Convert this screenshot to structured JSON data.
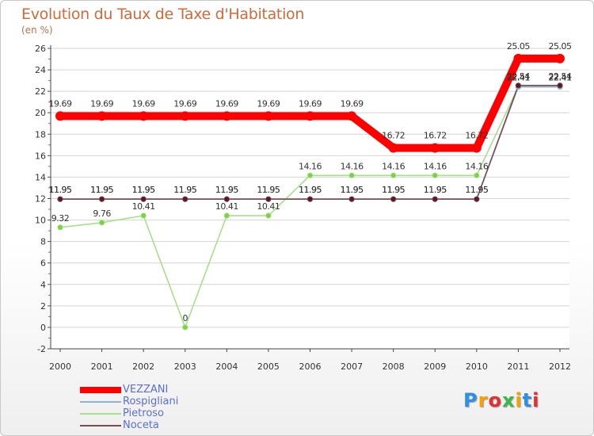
{
  "header": {
    "title": "Evolution du Taux de Taxe d'Habitation",
    "subtitle": "(en %)"
  },
  "logo": {
    "text": "Proxiti",
    "colors": [
      "#2f8fe6",
      "#f4a300",
      "#e03030",
      "#3cb54a",
      "#f4a300",
      "#2f8fe6",
      "#e03030"
    ]
  },
  "chart_data": {
    "type": "line",
    "title": "Evolution du Taux de Taxe d'Habitation",
    "ylabel": "(en %)",
    "xlabel": "",
    "x": [
      "2000",
      "2001",
      "2002",
      "2003",
      "2004",
      "2005",
      "2006",
      "2007",
      "2008",
      "2009",
      "2010",
      "2011",
      "2012"
    ],
    "ylim": [
      -2,
      26
    ],
    "yticks": [
      "-2",
      "0",
      "2",
      "4",
      "6",
      "8",
      "10",
      "12",
      "14",
      "16",
      "18",
      "20",
      "22",
      "24",
      "26"
    ],
    "grid": "horizontal",
    "legend_position": "bottom-left",
    "series": [
      {
        "name": "VEZZANI",
        "color": "#ff0000",
        "style": "thick",
        "values": [
          19.69,
          19.69,
          19.69,
          19.69,
          19.69,
          19.69,
          19.69,
          19.69,
          16.72,
          16.72,
          16.72,
          25.05,
          25.05
        ],
        "labels": [
          "19.69",
          "19.69",
          "19.69",
          "19.69",
          "19.69",
          "19.69",
          "19.69",
          "19.69",
          "16.72",
          "16.72",
          "16.72",
          "25.05",
          "25.05"
        ]
      },
      {
        "name": "Rospigliani",
        "color": "#8fb3cf",
        "style": "thin",
        "values": [
          11.95,
          11.95,
          11.95,
          11.95,
          11.95,
          11.95,
          11.95,
          11.95,
          11.95,
          11.95,
          11.95,
          22.41,
          22.41
        ],
        "labels": [
          "11.95",
          "11.95",
          "11.95",
          "11.95",
          "11.95",
          "11.95",
          "11.95",
          "11.95",
          "11.95",
          "11.95",
          "11.95",
          "22.41",
          "22.41"
        ]
      },
      {
        "name": "Pietroso",
        "color": "#a6e08a",
        "style": "thin",
        "marker": "#7fd23f",
        "values": [
          9.32,
          9.76,
          10.41,
          0,
          10.41,
          10.41,
          14.16,
          14.16,
          14.16,
          14.16,
          14.16,
          22.41,
          22.41
        ],
        "labels": [
          "9.32",
          "9.76",
          "10.41",
          "0",
          "10.41",
          "10.41",
          "14.16",
          "14.16",
          "14.16",
          "14.16",
          "14.16",
          "22.41",
          "22.41"
        ]
      },
      {
        "name": "Noceta",
        "color": "#7a4a55",
        "style": "thin",
        "marker": "#5a1a24",
        "values": [
          11.95,
          11.95,
          11.95,
          11.95,
          11.95,
          11.95,
          11.95,
          11.95,
          11.95,
          11.95,
          11.95,
          22.54,
          22.54
        ],
        "labels": [
          "11.95",
          "11.95",
          "11.95",
          "11.95",
          "11.95",
          "11.95",
          "11.95",
          "11.95",
          "11.95",
          "11.95",
          "11.95",
          "22.54",
          "22.54"
        ]
      }
    ]
  }
}
